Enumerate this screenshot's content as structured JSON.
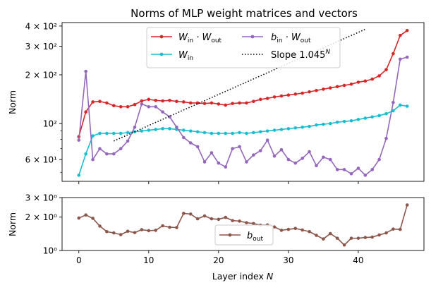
{
  "chart_data": [
    {
      "type": "line",
      "title": "Norms of MLP weight matrices and vectors",
      "xlabel": "",
      "ylabel": "Norm",
      "yscale": "log",
      "xlim": [
        -2.4,
        49.4
      ],
      "ylim": [
        44,
        420
      ],
      "xticks": [
        0,
        10,
        20,
        30,
        40
      ],
      "yticks_major": [
        {
          "value": 60,
          "label": "6 × 10¹"
        },
        {
          "value": 100,
          "label": "10²"
        },
        {
          "value": 200,
          "label": "2 × 10²"
        },
        {
          "value": 300,
          "label": "3 × 10²"
        },
        {
          "value": 400,
          "label": "4 × 10²"
        }
      ],
      "yticks_minor": [
        50,
        70,
        80,
        90
      ],
      "legend_position": "upper-center",
      "series": [
        {
          "name": "W_in · W_out",
          "label_main": "W",
          "label_sub": "in",
          "label_mid": " · W",
          "label_sub2": "out",
          "color": "#d62728",
          "style": "solid-markers",
          "values": [
            83,
            118,
            136,
            137,
            134,
            129,
            127,
            127,
            131,
            138,
            141,
            139,
            138,
            139,
            137,
            136,
            134,
            134,
            133,
            134,
            132,
            130,
            133,
            134,
            134,
            137,
            141,
            143,
            146,
            148,
            150,
            152,
            154,
            157,
            160,
            163,
            166,
            169,
            172,
            175,
            180,
            183,
            188,
            197,
            215,
            270,
            350,
            375
          ]
        },
        {
          "name": "W_in",
          "label_main": "W",
          "label_sub": "in",
          "color": "#17becf",
          "style": "solid-markers",
          "values": [
            48,
            65,
            84,
            87,
            87,
            87,
            87,
            88,
            89,
            90,
            91,
            92,
            93,
            93,
            92,
            91,
            90,
            89,
            88,
            87,
            87,
            87,
            87,
            88,
            87,
            88,
            89,
            90,
            91,
            92,
            93,
            94,
            95,
            96,
            98,
            99,
            100,
            102,
            103,
            104,
            106,
            108,
            110,
            112,
            115,
            120,
            130,
            128
          ]
        },
        {
          "name": "b_in · W_out",
          "label_main": "b",
          "label_sub": "in",
          "label_mid": " · W",
          "label_sub2": "out",
          "color": "#9467bd",
          "style": "solid-markers",
          "values": [
            79,
            210,
            60,
            70,
            65,
            65,
            70,
            78,
            95,
            132,
            127,
            127,
            118,
            110,
            95,
            82,
            76,
            72,
            58,
            66,
            57,
            54,
            70,
            72,
            58,
            64,
            68,
            79,
            63,
            69,
            60,
            57,
            61,
            67,
            55,
            62,
            60,
            52,
            52,
            49,
            53,
            48,
            52,
            60,
            81,
            135,
            250,
            257
          ]
        },
        {
          "name": "Slope 1.045^N",
          "label_main": "Slope 1.045",
          "label_sup": "N",
          "color": "#000000",
          "style": "dotted",
          "x": [
            5,
            41
          ],
          "values": [
            78,
            382
          ]
        }
      ]
    },
    {
      "type": "line",
      "title": "",
      "xlabel": "Layer index N",
      "ylabel": "Norm",
      "yscale": "log",
      "xlim": [
        -2.4,
        49.4
      ],
      "ylim": [
        1.0,
        3.0
      ],
      "xticks": [
        0,
        10,
        20,
        30,
        40
      ],
      "yticks_major": [
        {
          "value": 1.0,
          "label": "10⁰"
        },
        {
          "value": 2.0,
          "label": "2 × 10⁰"
        },
        {
          "value": 3.0,
          "label": "3 × 10⁰"
        }
      ],
      "legend_position": "lower-center",
      "series": [
        {
          "name": "b_out",
          "label_main": "b",
          "label_sub": "out",
          "color": "#8c564b",
          "style": "solid-markers",
          "values": [
            1.96,
            2.09,
            1.95,
            1.66,
            1.48,
            1.44,
            1.39,
            1.49,
            1.45,
            1.54,
            1.51,
            1.52,
            1.67,
            1.62,
            1.61,
            2.16,
            2.13,
            1.93,
            2.05,
            1.93,
            1.91,
            1.99,
            1.86,
            1.84,
            1.78,
            1.75,
            1.69,
            1.7,
            1.63,
            1.52,
            1.55,
            1.58,
            1.53,
            1.48,
            1.37,
            1.27,
            1.42,
            1.29,
            1.12,
            1.29,
            1.29,
            1.31,
            1.32,
            1.38,
            1.44,
            1.56,
            1.55,
            2.57
          ]
        }
      ]
    }
  ]
}
